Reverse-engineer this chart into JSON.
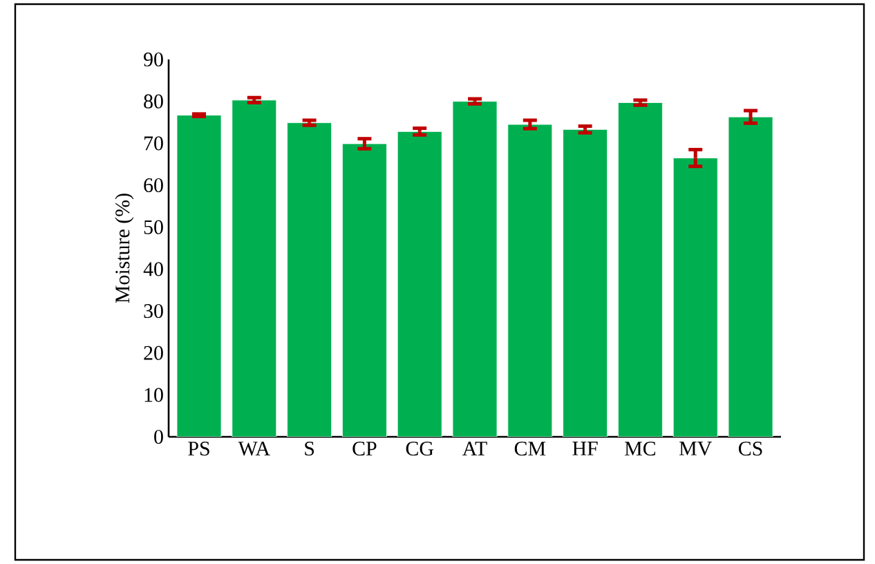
{
  "chart_data": {
    "type": "bar",
    "ylabel": "Moisture (%)",
    "categories": [
      "PS",
      "WA",
      "S",
      "CP",
      "CG",
      "AT",
      "CM",
      "HF",
      "MC",
      "MV",
      "CS"
    ],
    "values": [
      76.7,
      80.3,
      74.9,
      69.9,
      72.8,
      80.0,
      74.5,
      73.3,
      79.7,
      66.5,
      76.3
    ],
    "errors": [
      0.3,
      0.6,
      0.6,
      1.2,
      0.8,
      0.6,
      1.0,
      0.8,
      0.6,
      2.0,
      1.5
    ],
    "color": "#00b050",
    "ylim": [
      0,
      90
    ],
    "yticks": [
      0,
      10,
      20,
      30,
      40,
      50,
      60,
      70,
      80,
      90
    ],
    "grid": false
  }
}
